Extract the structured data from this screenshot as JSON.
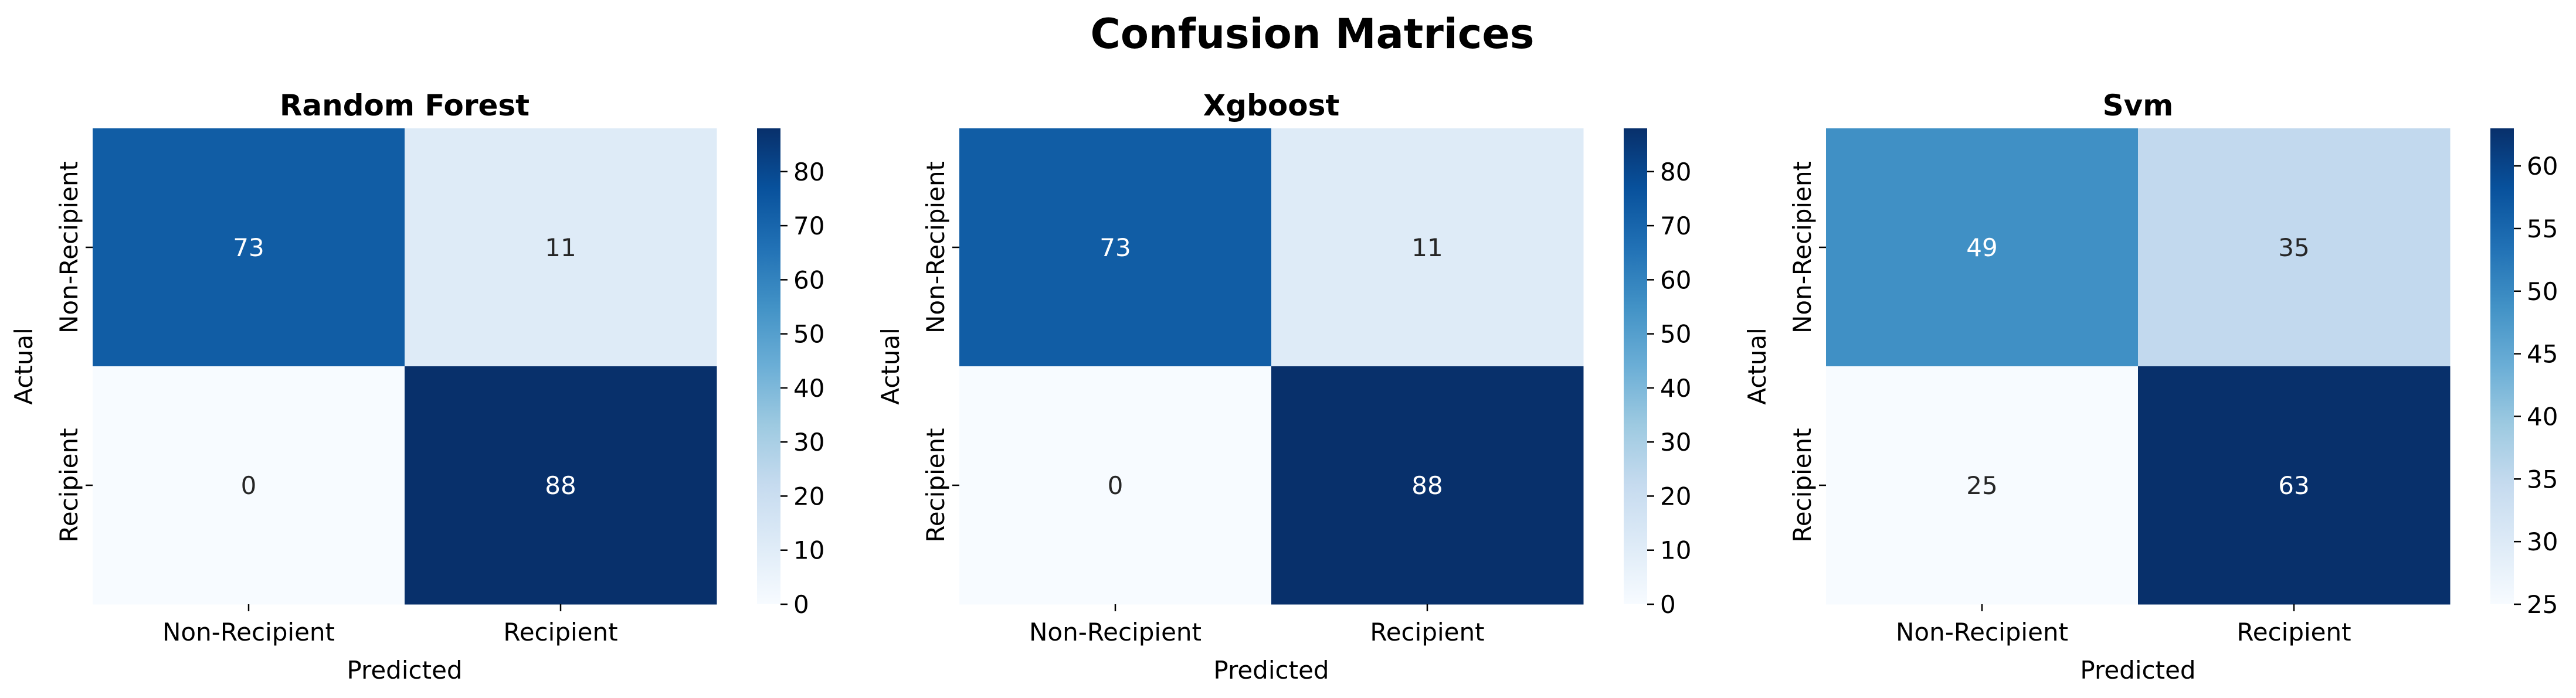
{
  "figure": {
    "title": "Confusion Matrices"
  },
  "chart_data": [
    {
      "type": "heatmap",
      "title": "Random Forest",
      "xlabel": "Predicted",
      "ylabel": "Actual",
      "x_categories": [
        "Non-Recipient",
        "Recipient"
      ],
      "y_categories": [
        "Non-Recipient",
        "Recipient"
      ],
      "values": [
        [
          73,
          11
        ],
        [
          0,
          88
        ]
      ],
      "colormap": "Blues",
      "colorbar": {
        "vmin": 0,
        "vmax": 88,
        "ticks": [
          0,
          10,
          20,
          30,
          40,
          50,
          60,
          70,
          80
        ]
      }
    },
    {
      "type": "heatmap",
      "title": "Xgboost",
      "xlabel": "Predicted",
      "ylabel": "Actual",
      "x_categories": [
        "Non-Recipient",
        "Recipient"
      ],
      "y_categories": [
        "Non-Recipient",
        "Recipient"
      ],
      "values": [
        [
          73,
          11
        ],
        [
          0,
          88
        ]
      ],
      "colormap": "Blues",
      "colorbar": {
        "vmin": 0,
        "vmax": 88,
        "ticks": [
          0,
          10,
          20,
          30,
          40,
          50,
          60,
          70,
          80
        ]
      }
    },
    {
      "type": "heatmap",
      "title": "Svm",
      "xlabel": "Predicted",
      "ylabel": "Actual",
      "x_categories": [
        "Non-Recipient",
        "Recipient"
      ],
      "y_categories": [
        "Non-Recipient",
        "Recipient"
      ],
      "values": [
        [
          49,
          35
        ],
        [
          25,
          63
        ]
      ],
      "colormap": "Blues",
      "colorbar": {
        "vmin": 25,
        "vmax": 63,
        "ticks": [
          25,
          30,
          35,
          40,
          45,
          50,
          55,
          60
        ]
      }
    }
  ]
}
